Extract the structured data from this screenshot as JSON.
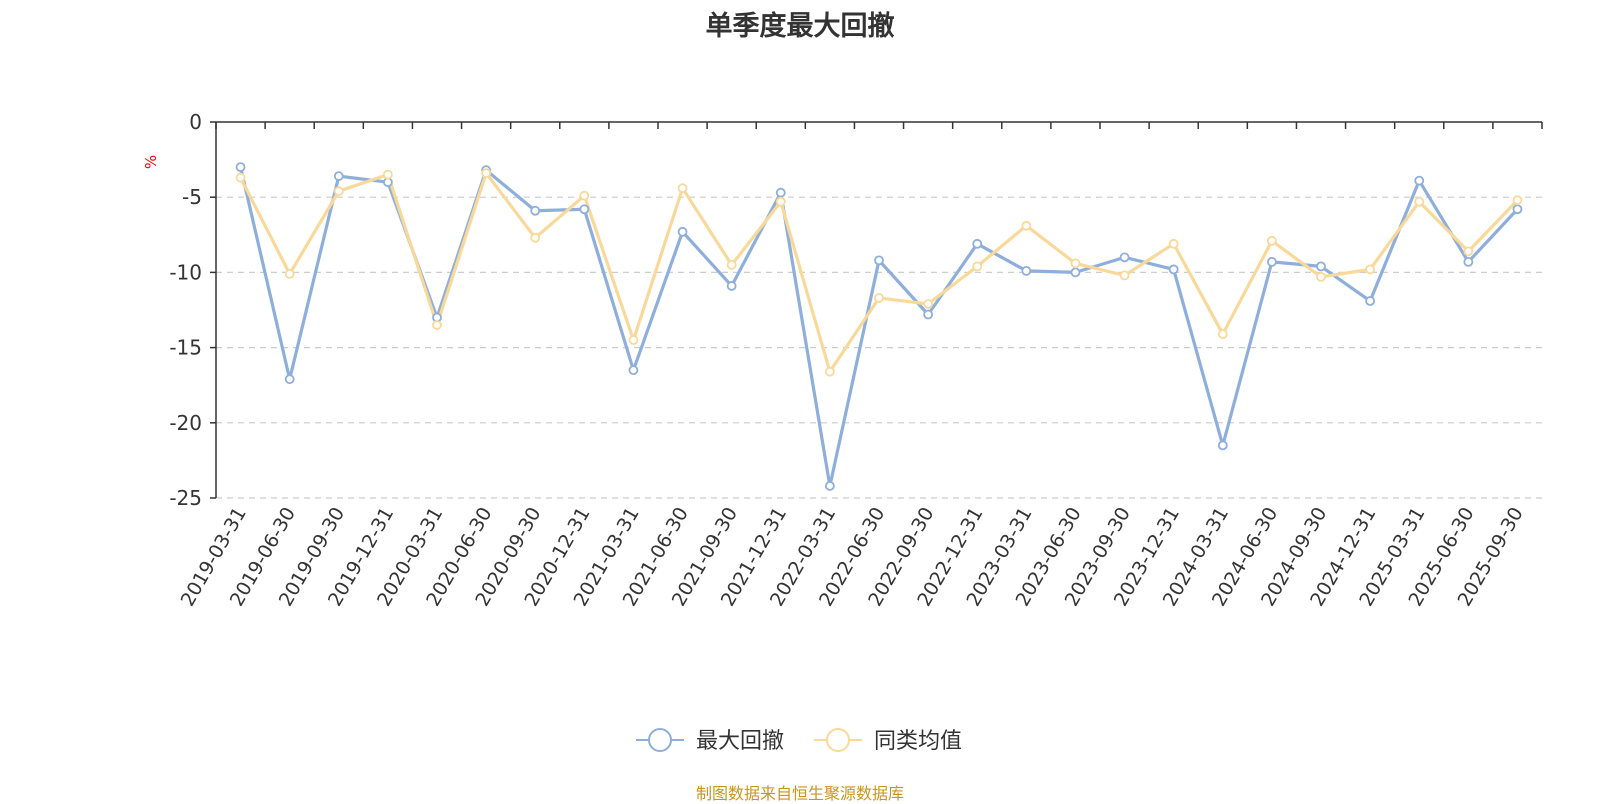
{
  "page": {
    "title": "单季度最大回撤",
    "source_note": "制图数据来自恒生聚源数据库"
  },
  "colors": {
    "series_1": "#8eaedc",
    "series_2": "#f9d99a",
    "axis": "#333333",
    "grid": "#cccccc",
    "unit_label": "#ff0000",
    "title": "#333333",
    "footer": "#c8961e"
  },
  "chart_data": {
    "type": "line",
    "title": "单季度最大回撤",
    "ylabel": "%",
    "xlabel": "",
    "ylim": [
      -25,
      0
    ],
    "yticks": [
      0,
      -5,
      -10,
      -15,
      -20,
      -25
    ],
    "grid": true,
    "legend_position": "bottom-center",
    "categories": [
      "2019-03-31",
      "2019-06-30",
      "2019-09-30",
      "2019-12-31",
      "2020-03-31",
      "2020-06-30",
      "2020-09-30",
      "2020-12-31",
      "2021-03-31",
      "2021-06-30",
      "2021-09-30",
      "2021-12-31",
      "2022-03-31",
      "2022-06-30",
      "2022-09-30",
      "2022-12-31",
      "2023-03-31",
      "2023-06-30",
      "2023-09-30",
      "2023-12-31",
      "2024-03-31",
      "2024-06-30",
      "2024-09-30",
      "2024-12-31",
      "2025-03-31",
      "2025-06-30",
      "2025-09-30"
    ],
    "series": [
      {
        "name": "最大回撤",
        "values": [
          -3.0,
          -17.1,
          -3.6,
          -4.0,
          -13.0,
          -3.2,
          -5.9,
          -5.8,
          -16.5,
          -7.3,
          -10.9,
          -4.7,
          -24.2,
          -9.2,
          -12.8,
          -8.1,
          -9.9,
          -10.0,
          -9.0,
          -9.8,
          -21.5,
          -9.3,
          -9.6,
          -11.9,
          -3.9,
          -9.3,
          -5.8
        ]
      },
      {
        "name": "同类均值",
        "values": [
          -3.7,
          -10.1,
          -4.6,
          -3.5,
          -13.5,
          -3.4,
          -7.7,
          -4.9,
          -14.5,
          -4.4,
          -9.5,
          -5.3,
          -16.6,
          -11.7,
          -12.1,
          -9.6,
          -6.9,
          -9.4,
          -10.2,
          -8.1,
          -14.1,
          -7.9,
          -10.3,
          -9.8,
          -5.3,
          -8.6,
          -5.2
        ]
      }
    ]
  }
}
